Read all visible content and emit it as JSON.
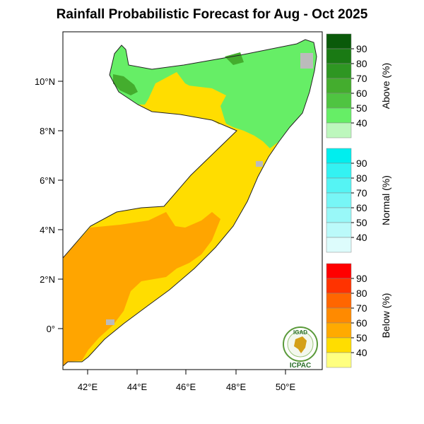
{
  "title": "Rainfall Probabilistic Forecast for Aug - Oct 2025",
  "map": {
    "lon_labels": [
      "42°E",
      "44°E",
      "46°E",
      "48°E",
      "50°E"
    ],
    "lat_labels": [
      "10°N",
      "8°N",
      "6°N",
      "4°N",
      "2°N",
      "0°"
    ]
  },
  "colorbars": [
    {
      "title": "Above (%)",
      "ticks": [
        "90",
        "80",
        "70",
        "60",
        "50",
        "40"
      ],
      "colors": [
        "#0a5a0a",
        "#1a7a14",
        "#2e9622",
        "#44ad2e",
        "#4fc441",
        "#66ee66",
        "#bdf7bd"
      ]
    },
    {
      "title": "Normal (%)",
      "ticks": [
        "90",
        "80",
        "70",
        "60",
        "50",
        "40"
      ],
      "colors": [
        "#00eeee",
        "#33f2f2",
        "#55f4f4",
        "#77f6f6",
        "#99f8f8",
        "#bbfafa",
        "#ddfcfc"
      ]
    },
    {
      "title": "Below (%)",
      "ticks": [
        "90",
        "80",
        "70",
        "60",
        "50",
        "40"
      ],
      "colors": [
        "#ff0000",
        "#ff3300",
        "#ff6600",
        "#ff8a00",
        "#ffaa00",
        "#ffdd00",
        "#ffff80"
      ]
    }
  ],
  "logo": {
    "top_text": "IGAD",
    "bottom_text": "ICPAC"
  }
}
